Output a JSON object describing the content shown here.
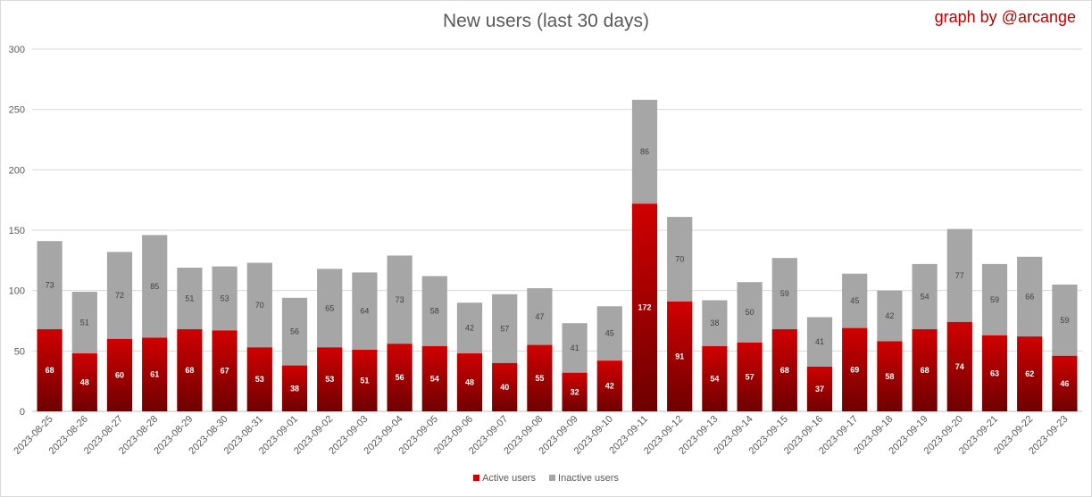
{
  "title": "New users (last 30 days)",
  "credit": "graph by @arcange",
  "colors": {
    "active_top": "#d00000",
    "active_bottom": "#6e0000",
    "inactive": "#a6a6a6",
    "grid": "#d9d9d9"
  },
  "chart_data": {
    "type": "bar",
    "stacked": true,
    "title": "New users (last 30 days)",
    "ylim": [
      0,
      300
    ],
    "yticks": [
      0,
      50,
      100,
      150,
      200,
      250,
      300
    ],
    "grid": true,
    "legend_position": "bottom",
    "categories": [
      "2023-08-25",
      "2023-08-26",
      "2023-08-27",
      "2023-08-28",
      "2023-08-29",
      "2023-08-30",
      "2023-08-31",
      "2023-09-01",
      "2023-09-02",
      "2023-09-03",
      "2023-09-04",
      "2023-09-05",
      "2023-09-06",
      "2023-09-07",
      "2023-09-08",
      "2023-09-09",
      "2023-09-10",
      "2023-09-11",
      "2023-09-12",
      "2023-09-13",
      "2023-09-14",
      "2023-09-15",
      "2023-09-16",
      "2023-09-17",
      "2023-09-18",
      "2023-09-19",
      "2023-09-20",
      "2023-09-21",
      "2023-09-22",
      "2023-09-23"
    ],
    "series": [
      {
        "name": "Active users",
        "values": [
          68,
          48,
          60,
          61,
          68,
          67,
          53,
          38,
          53,
          51,
          56,
          54,
          48,
          40,
          55,
          32,
          42,
          172,
          91,
          54,
          57,
          68,
          37,
          69,
          58,
          68,
          74,
          63,
          62,
          46
        ]
      },
      {
        "name": "Inactive users",
        "values": [
          73,
          51,
          72,
          85,
          51,
          53,
          70,
          56,
          65,
          64,
          73,
          58,
          42,
          57,
          47,
          41,
          45,
          86,
          70,
          38,
          50,
          59,
          41,
          45,
          42,
          54,
          77,
          59,
          66,
          59
        ]
      }
    ]
  }
}
